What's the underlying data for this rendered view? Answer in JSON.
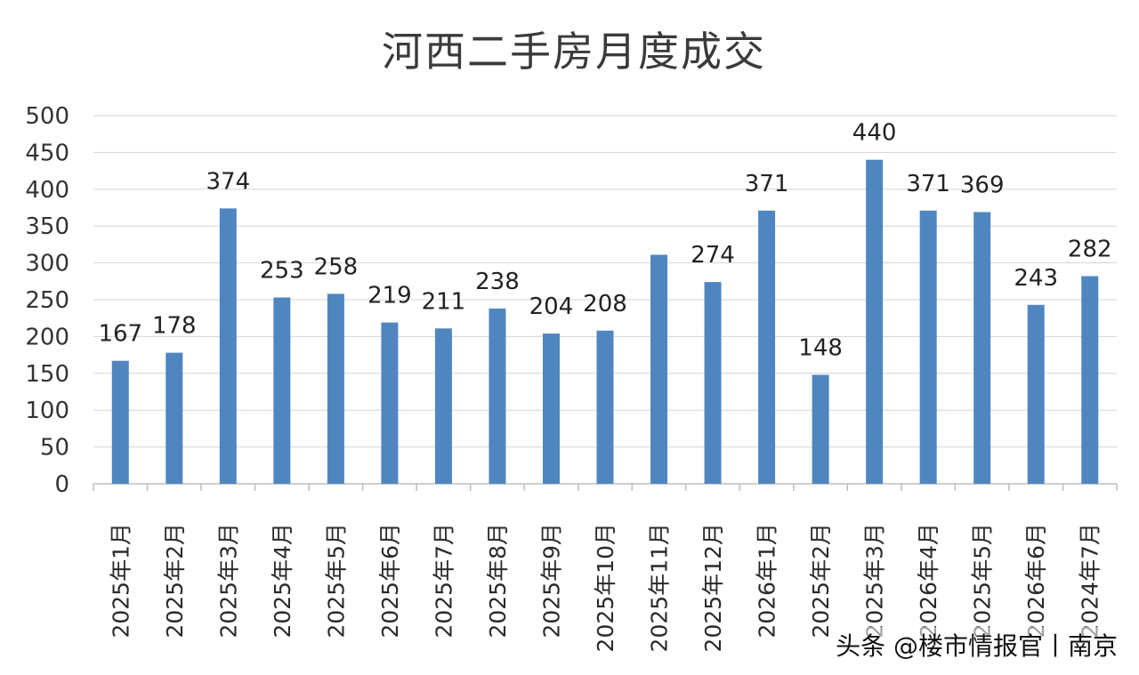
{
  "chart_data": {
    "type": "bar",
    "title": "河西二手房月度成交",
    "categories": [
      "2025年1月",
      "2025年2月",
      "2025年3月",
      "2025年4月",
      "2025年5月",
      "2025年6月",
      "2025年7月",
      "2025年8月",
      "2025年9月",
      "2025年10月",
      "2025年11月",
      "2025年12月",
      "2026年1月",
      "2025年2月",
      "2025年3月",
      "2026年4月",
      "2025年5月",
      "2026年6月",
      "2024年7月"
    ],
    "values": [
      167,
      178,
      374,
      253,
      258,
      219,
      211,
      238,
      204,
      208,
      311,
      274,
      371,
      148,
      440,
      371,
      369,
      243,
      282
    ],
    "data_labels": [
      "167",
      "178",
      "374",
      "253",
      "258",
      "219",
      "211",
      "238",
      "204",
      "208",
      "",
      "274",
      "371",
      "148",
      "440",
      "371",
      "369",
      "243",
      "282"
    ],
    "ylim": [
      0,
      500
    ],
    "yticks": [
      0,
      50,
      100,
      150,
      200,
      250,
      300,
      350,
      400,
      450,
      500
    ],
    "grid": true,
    "bar_color": "#4f86c0"
  },
  "watermark": "头条 @楼市情报官丨南京"
}
